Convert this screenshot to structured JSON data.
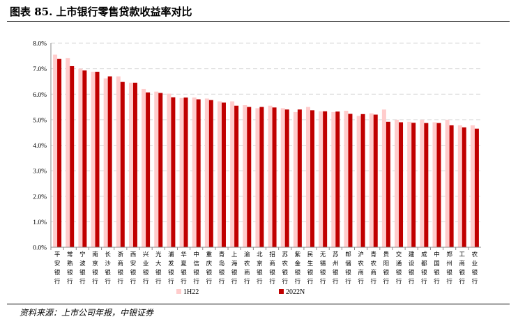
{
  "title": "图表 85. 上市银行零售贷款收益率对比",
  "source": "资料来源：上市公司年报，中银证券",
  "chart_data": {
    "type": "bar",
    "ylim": [
      0,
      8
    ],
    "yticks": [
      "0.0%",
      "1.0%",
      "2.0%",
      "3.0%",
      "4.0%",
      "5.0%",
      "6.0%",
      "7.0%",
      "8.0%"
    ],
    "grid": true,
    "legend_position": "bottom",
    "categories": [
      "平安银行",
      "常熟银行",
      "宁波银行",
      "南京银行",
      "长沙银行",
      "浙商银行",
      "西安银行",
      "兴业银行",
      "光大银行",
      "浦发银行",
      "华夏银行",
      "中信银行",
      "重庆银行",
      "青岛银行",
      "上海银行",
      "渝农商行",
      "北京银行",
      "招商银行",
      "苏农银行",
      "紫金银行",
      "民生银行",
      "无锡银行",
      "苏州银行",
      "邮储银行",
      "沪农商行",
      "青农商行",
      "贵阳银行",
      "交通银行",
      "建设银行",
      "成都银行",
      "中国银行",
      "郑州银行",
      "工商银行",
      "农业银行"
    ],
    "series": [
      {
        "name": "1H22",
        "color": "#FFCCCC",
        "values": [
          7.55,
          7.42,
          7.0,
          6.88,
          6.62,
          6.7,
          6.45,
          6.2,
          6.1,
          6.02,
          5.85,
          5.87,
          5.83,
          5.72,
          5.72,
          5.57,
          5.45,
          5.55,
          5.45,
          5.3,
          5.5,
          5.33,
          5.3,
          5.35,
          5.15,
          5.25,
          5.4,
          5.0,
          4.92,
          5.0,
          4.9,
          5.0,
          4.78,
          4.78
        ]
      },
      {
        "name": "2022N",
        "color": "#C00000",
        "values": [
          7.38,
          7.1,
          6.93,
          6.88,
          6.7,
          6.48,
          6.45,
          6.07,
          6.05,
          5.88,
          5.87,
          5.8,
          5.77,
          5.67,
          5.55,
          5.5,
          5.5,
          5.48,
          5.4,
          5.4,
          5.37,
          5.33,
          5.32,
          5.23,
          5.22,
          5.2,
          4.92,
          4.9,
          4.88,
          4.87,
          4.87,
          4.78,
          4.7,
          4.65
        ]
      }
    ]
  }
}
